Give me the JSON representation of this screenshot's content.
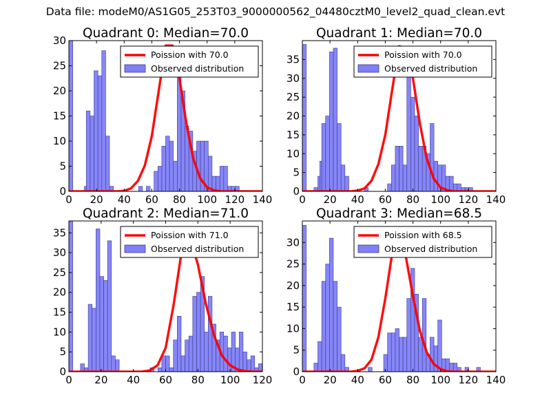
{
  "figure": {
    "suptitle": "Data file: modeM0/AS1G05_253T03_9000000562_04480cztM0_level2_quad_clean.evt"
  },
  "colors": {
    "hist_fill": "#8080f8",
    "hist_edge": "#3a3a8a",
    "poisson_line": "#ff0000",
    "axis": "#000000"
  },
  "chart_data": [
    {
      "type": "bar",
      "title": "Quadrant 0: Median=70.0",
      "bin_width": 2.8,
      "xlim": [
        0,
        140
      ],
      "ylim": [
        0,
        30
      ],
      "xticks": [
        0,
        20,
        40,
        60,
        80,
        100,
        120,
        140
      ],
      "yticks": [
        0,
        5,
        10,
        15,
        20,
        25,
        30
      ],
      "legend": {
        "position": "top-right",
        "line_label": "Poission with 70.0",
        "bar_label": "Observed distribution"
      },
      "histogram": [
        [
          0,
          30
        ],
        [
          11.2,
          1
        ],
        [
          12.6,
          16
        ],
        [
          15.4,
          15
        ],
        [
          18.2,
          24
        ],
        [
          21,
          23
        ],
        [
          23.8,
          28
        ],
        [
          26.6,
          11
        ],
        [
          29.4,
          1
        ],
        [
          50.4,
          1
        ],
        [
          56,
          1
        ],
        [
          61.6,
          4
        ],
        [
          64.4,
          5
        ],
        [
          67.2,
          9
        ],
        [
          70,
          11
        ],
        [
          72.8,
          10
        ],
        [
          75.6,
          6
        ],
        [
          78.4,
          24
        ],
        [
          81.2,
          20
        ],
        [
          84,
          13
        ],
        [
          86.8,
          12
        ],
        [
          89.6,
          8
        ],
        [
          92.4,
          10
        ],
        [
          95.2,
          10
        ],
        [
          98,
          10
        ],
        [
          100.8,
          7
        ],
        [
          103.6,
          3
        ],
        [
          106.4,
          3
        ],
        [
          109.2,
          5
        ],
        [
          112,
          5
        ],
        [
          114.8,
          1
        ],
        [
          117.6,
          1
        ],
        [
          120.4,
          1
        ]
      ],
      "poisson": [
        [
          0,
          0
        ],
        [
          35,
          0
        ],
        [
          40,
          0.1
        ],
        [
          45,
          0.6
        ],
        [
          50,
          2.1
        ],
        [
          55,
          5.2
        ],
        [
          60,
          11
        ],
        [
          65,
          20
        ],
        [
          70,
          29
        ],
        [
          75,
          29
        ],
        [
          80,
          22.5
        ],
        [
          85,
          13.5
        ],
        [
          90,
          6.5
        ],
        [
          95,
          2.6
        ],
        [
          100,
          0.8
        ],
        [
          105,
          0.2
        ],
        [
          110,
          0
        ],
        [
          140,
          0
        ]
      ]
    },
    {
      "type": "bar",
      "title": "Quadrant 1: Median=70.0",
      "bin_width": 2.8,
      "xlim": [
        0,
        140
      ],
      "ylim": [
        0,
        40
      ],
      "xticks": [
        0,
        20,
        40,
        60,
        80,
        100,
        120,
        140
      ],
      "yticks": [
        0,
        5,
        10,
        15,
        20,
        25,
        30,
        35
      ],
      "legend": {
        "position": "top-right",
        "line_label": "Poission with 70.0",
        "bar_label": "Observed distribution"
      },
      "histogram": [
        [
          0,
          39
        ],
        [
          8.4,
          1
        ],
        [
          11.2,
          4
        ],
        [
          12.6,
          8
        ],
        [
          14,
          18
        ],
        [
          16.8,
          20
        ],
        [
          19.6,
          37
        ],
        [
          22.4,
          38
        ],
        [
          25.2,
          18
        ],
        [
          28,
          7
        ],
        [
          30.8,
          4
        ],
        [
          44.8,
          1
        ],
        [
          61.6,
          2
        ],
        [
          64.4,
          7
        ],
        [
          67.2,
          12
        ],
        [
          70,
          12
        ],
        [
          72.8,
          7
        ],
        [
          75.6,
          31
        ],
        [
          78.4,
          25
        ],
        [
          81.2,
          20
        ],
        [
          84,
          12
        ],
        [
          86.8,
          12
        ],
        [
          89.6,
          10
        ],
        [
          92.4,
          18
        ],
        [
          95.2,
          8
        ],
        [
          98,
          7
        ],
        [
          100.8,
          7
        ],
        [
          103.6,
          4
        ],
        [
          106.4,
          4
        ],
        [
          109.2,
          2
        ],
        [
          112,
          2
        ],
        [
          114.8,
          1
        ],
        [
          117.6,
          1
        ],
        [
          120.4,
          1
        ]
      ],
      "poisson": [
        [
          0,
          0
        ],
        [
          35,
          0
        ],
        [
          40,
          0.2
        ],
        [
          45,
          0.8
        ],
        [
          50,
          2.8
        ],
        [
          55,
          7.2
        ],
        [
          60,
          15
        ],
        [
          65,
          27
        ],
        [
          70,
          38.5
        ],
        [
          75,
          38
        ],
        [
          80,
          30
        ],
        [
          85,
          18
        ],
        [
          90,
          8.7
        ],
        [
          95,
          3.4
        ],
        [
          100,
          1
        ],
        [
          105,
          0.3
        ],
        [
          110,
          0
        ],
        [
          140,
          0
        ]
      ]
    },
    {
      "type": "bar",
      "title": "Quadrant 2: Median=71.0",
      "bin_width": 2.4,
      "xlim": [
        0,
        120
      ],
      "ylim": [
        0,
        38
      ],
      "xticks": [
        0,
        20,
        40,
        60,
        80,
        100,
        120
      ],
      "yticks": [
        0,
        5,
        10,
        15,
        20,
        25,
        30,
        35
      ],
      "legend": {
        "position": "top-right",
        "line_label": "Poission with 71.0",
        "bar_label": "Observed distribution"
      },
      "histogram": [
        [
          0,
          38
        ],
        [
          7.2,
          2
        ],
        [
          9.6,
          1
        ],
        [
          12,
          17
        ],
        [
          14.4,
          16
        ],
        [
          16.8,
          36
        ],
        [
          19.2,
          24
        ],
        [
          21.6,
          23
        ],
        [
          24,
          33
        ],
        [
          26.4,
          4
        ],
        [
          28.8,
          3
        ],
        [
          50.4,
          1
        ],
        [
          55.2,
          1
        ],
        [
          57.6,
          4
        ],
        [
          60,
          4
        ],
        [
          62.4,
          1
        ],
        [
          64.8,
          8
        ],
        [
          67.2,
          14
        ],
        [
          69.6,
          4
        ],
        [
          72,
          8
        ],
        [
          74.4,
          9
        ],
        [
          76.8,
          19
        ],
        [
          79.2,
          20
        ],
        [
          81.6,
          24
        ],
        [
          84,
          10
        ],
        [
          86.4,
          19
        ],
        [
          88.8,
          12
        ],
        [
          91.2,
          8
        ],
        [
          93.6,
          10
        ],
        [
          96,
          9
        ],
        [
          98.4,
          6
        ],
        [
          100.8,
          10
        ],
        [
          103.2,
          6
        ],
        [
          105.6,
          10
        ],
        [
          108,
          5
        ],
        [
          110.4,
          3
        ],
        [
          112.8,
          4
        ],
        [
          115.2,
          1
        ],
        [
          117.6,
          2
        ]
      ],
      "poisson": [
        [
          0,
          0
        ],
        [
          45,
          0
        ],
        [
          50,
          0.3
        ],
        [
          55,
          1.6
        ],
        [
          60,
          6
        ],
        [
          65,
          17
        ],
        [
          70,
          30.5
        ],
        [
          72,
          35.5
        ],
        [
          75,
          34
        ],
        [
          80,
          27
        ],
        [
          85,
          17
        ],
        [
          90,
          9.2
        ],
        [
          95,
          4
        ],
        [
          100,
          1.6
        ],
        [
          105,
          0.5
        ],
        [
          110,
          0.1
        ],
        [
          115,
          0
        ],
        [
          120,
          0
        ]
      ]
    },
    {
      "type": "bar",
      "title": "Quadrant 3: Median=68.5",
      "bin_width": 2.8,
      "xlim": [
        0,
        140
      ],
      "ylim": [
        0,
        35
      ],
      "xticks": [
        0,
        20,
        40,
        60,
        80,
        100,
        120,
        140
      ],
      "yticks": [
        0,
        5,
        10,
        15,
        20,
        25,
        30
      ],
      "legend": {
        "position": "top-right",
        "line_label": "Poission with 68.5",
        "bar_label": "Observed distribution"
      },
      "histogram": [
        [
          0,
          34
        ],
        [
          8.4,
          2
        ],
        [
          11.2,
          7
        ],
        [
          14,
          21
        ],
        [
          16.8,
          25
        ],
        [
          19.6,
          31
        ],
        [
          22.4,
          21
        ],
        [
          25.2,
          15
        ],
        [
          28,
          4
        ],
        [
          30.8,
          1
        ],
        [
          47.6,
          1
        ],
        [
          58.8,
          4
        ],
        [
          61.6,
          9
        ],
        [
          64.4,
          9
        ],
        [
          67.2,
          10
        ],
        [
          70,
          8
        ],
        [
          72.8,
          8
        ],
        [
          75.6,
          17
        ],
        [
          78.4,
          24
        ],
        [
          81.2,
          18
        ],
        [
          84,
          8
        ],
        [
          86.8,
          17
        ],
        [
          89.6,
          4
        ],
        [
          92.4,
          8
        ],
        [
          95.2,
          6
        ],
        [
          98,
          12
        ],
        [
          100.8,
          3
        ],
        [
          103.6,
          3
        ],
        [
          106.4,
          2
        ],
        [
          109.2,
          2
        ],
        [
          112,
          1
        ],
        [
          117.6,
          1
        ],
        [
          126,
          1
        ]
      ],
      "poisson": [
        [
          0,
          0
        ],
        [
          35,
          0
        ],
        [
          40,
          0.2
        ],
        [
          45,
          0.8
        ],
        [
          50,
          2.8
        ],
        [
          55,
          8
        ],
        [
          60,
          17
        ],
        [
          65,
          27.5
        ],
        [
          68,
          32.5
        ],
        [
          70,
          33
        ],
        [
          75,
          26.5
        ],
        [
          80,
          17.5
        ],
        [
          85,
          9.5
        ],
        [
          90,
          4.5
        ],
        [
          95,
          1.8
        ],
        [
          100,
          0.6
        ],
        [
          105,
          0.1
        ],
        [
          110,
          0
        ],
        [
          140,
          0
        ]
      ]
    }
  ]
}
